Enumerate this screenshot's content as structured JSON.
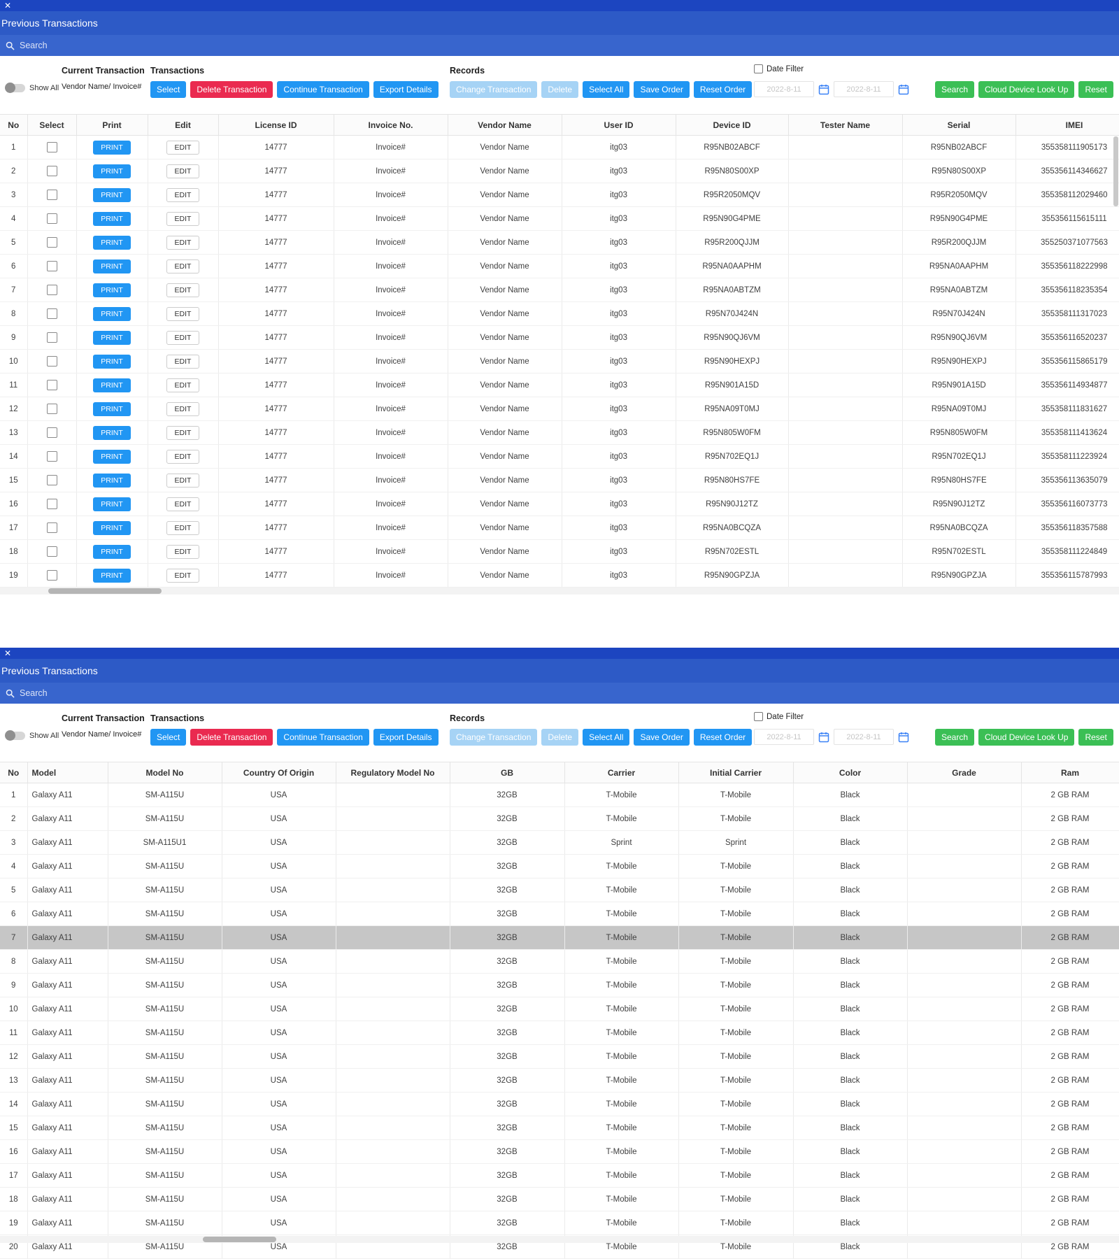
{
  "window": {
    "title": "Previous Transactions",
    "search_placeholder": "Search"
  },
  "toolbar": {
    "show_all_label": "Show All",
    "current_transaction_label": "Current Transaction",
    "current_transaction_value": "Vendor Name/ Invoice#",
    "transactions_label": "Transactions",
    "select_label": "Select",
    "delete_transaction_label": "Delete Transaction",
    "continue_transaction_label": "Continue Transaction",
    "export_details_label": "Export Details",
    "records_label": "Records",
    "change_transaction_label": "Change Transaction",
    "delete_label": "Delete",
    "select_all_label": "Select All",
    "save_order_label": "Save Order",
    "reset_order_label": "Reset Order",
    "date_filter_label": "Date Filter",
    "date_from_placeholder": "2022-8-11",
    "date_to_placeholder": "2022-8-11",
    "search_label": "Search",
    "cloud_lookup_label": "Cloud Device Look Up",
    "reset_label": "Reset"
  },
  "colors": {
    "accent_blue": "#2196f3",
    "danger_red": "#ea2a50",
    "disabled_blue": "#a6d3f5",
    "action_green": "#3bbf55",
    "title_blue": "#2d5ac6",
    "search_blue": "#3865cd",
    "strip_blue": "#1c45c0",
    "highlight_gray": "#c6c6c6"
  },
  "table1": {
    "print_label": "PRINT",
    "edit_label": "EDIT",
    "headers": [
      "No",
      "Select",
      "Print",
      "Edit",
      "License ID",
      "Invoice No.",
      "Vendor Name",
      "User ID",
      "Device ID",
      "Tester Name",
      "Serial",
      "IMEI"
    ],
    "rows": [
      {
        "no": 1,
        "license_id": "14777",
        "invoice_no": "Invoice#",
        "vendor_name": "Vendor Name",
        "user_id": "itg03",
        "device_id": "R95NB02ABCF",
        "tester_name": "",
        "serial": "R95NB02ABCF",
        "imei": "355358111905173"
      },
      {
        "no": 2,
        "license_id": "14777",
        "invoice_no": "Invoice#",
        "vendor_name": "Vendor Name",
        "user_id": "itg03",
        "device_id": "R95N80S00XP",
        "tester_name": "",
        "serial": "R95N80S00XP",
        "imei": "355356114346627"
      },
      {
        "no": 3,
        "license_id": "14777",
        "invoice_no": "Invoice#",
        "vendor_name": "Vendor Name",
        "user_id": "itg03",
        "device_id": "R95R2050MQV",
        "tester_name": "",
        "serial": "R95R2050MQV",
        "imei": "355358112029460"
      },
      {
        "no": 4,
        "license_id": "14777",
        "invoice_no": "Invoice#",
        "vendor_name": "Vendor Name",
        "user_id": "itg03",
        "device_id": "R95N90G4PME",
        "tester_name": "",
        "serial": "R95N90G4PME",
        "imei": "355356115615111"
      },
      {
        "no": 5,
        "license_id": "14777",
        "invoice_no": "Invoice#",
        "vendor_name": "Vendor Name",
        "user_id": "itg03",
        "device_id": "R95R200QJJM",
        "tester_name": "",
        "serial": "R95R200QJJM",
        "imei": "355250371077563"
      },
      {
        "no": 6,
        "license_id": "14777",
        "invoice_no": "Invoice#",
        "vendor_name": "Vendor Name",
        "user_id": "itg03",
        "device_id": "R95NA0AAPHM",
        "tester_name": "",
        "serial": "R95NA0AAPHM",
        "imei": "355356118222998"
      },
      {
        "no": 7,
        "license_id": "14777",
        "invoice_no": "Invoice#",
        "vendor_name": "Vendor Name",
        "user_id": "itg03",
        "device_id": "R95NA0ABTZM",
        "tester_name": "",
        "serial": "R95NA0ABTZM",
        "imei": "355356118235354"
      },
      {
        "no": 8,
        "license_id": "14777",
        "invoice_no": "Invoice#",
        "vendor_name": "Vendor Name",
        "user_id": "itg03",
        "device_id": "R95N70J424N",
        "tester_name": "",
        "serial": "R95N70J424N",
        "imei": "355358111317023"
      },
      {
        "no": 9,
        "license_id": "14777",
        "invoice_no": "Invoice#",
        "vendor_name": "Vendor Name",
        "user_id": "itg03",
        "device_id": "R95N90QJ6VM",
        "tester_name": "",
        "serial": "R95N90QJ6VM",
        "imei": "355356116520237"
      },
      {
        "no": 10,
        "license_id": "14777",
        "invoice_no": "Invoice#",
        "vendor_name": "Vendor Name",
        "user_id": "itg03",
        "device_id": "R95N90HEXPJ",
        "tester_name": "",
        "serial": "R95N90HEXPJ",
        "imei": "355356115865179"
      },
      {
        "no": 11,
        "license_id": "14777",
        "invoice_no": "Invoice#",
        "vendor_name": "Vendor Name",
        "user_id": "itg03",
        "device_id": "R95N901A15D",
        "tester_name": "",
        "serial": "R95N901A15D",
        "imei": "355356114934877"
      },
      {
        "no": 12,
        "license_id": "14777",
        "invoice_no": "Invoice#",
        "vendor_name": "Vendor Name",
        "user_id": "itg03",
        "device_id": "R95NA09T0MJ",
        "tester_name": "",
        "serial": "R95NA09T0MJ",
        "imei": "355358111831627"
      },
      {
        "no": 13,
        "license_id": "14777",
        "invoice_no": "Invoice#",
        "vendor_name": "Vendor Name",
        "user_id": "itg03",
        "device_id": "R95N805W0FM",
        "tester_name": "",
        "serial": "R95N805W0FM",
        "imei": "355358111413624"
      },
      {
        "no": 14,
        "license_id": "14777",
        "invoice_no": "Invoice#",
        "vendor_name": "Vendor Name",
        "user_id": "itg03",
        "device_id": "R95N702EQ1J",
        "tester_name": "",
        "serial": "R95N702EQ1J",
        "imei": "355358111223924"
      },
      {
        "no": 15,
        "license_id": "14777",
        "invoice_no": "Invoice#",
        "vendor_name": "Vendor Name",
        "user_id": "itg03",
        "device_id": "R95N80HS7FE",
        "tester_name": "",
        "serial": "R95N80HS7FE",
        "imei": "355356113635079"
      },
      {
        "no": 16,
        "license_id": "14777",
        "invoice_no": "Invoice#",
        "vendor_name": "Vendor Name",
        "user_id": "itg03",
        "device_id": "R95N90J12TZ",
        "tester_name": "",
        "serial": "R95N90J12TZ",
        "imei": "355356116073773"
      },
      {
        "no": 17,
        "license_id": "14777",
        "invoice_no": "Invoice#",
        "vendor_name": "Vendor Name",
        "user_id": "itg03",
        "device_id": "R95NA0BCQZA",
        "tester_name": "",
        "serial": "R95NA0BCQZA",
        "imei": "355356118357588"
      },
      {
        "no": 18,
        "license_id": "14777",
        "invoice_no": "Invoice#",
        "vendor_name": "Vendor Name",
        "user_id": "itg03",
        "device_id": "R95N702ESTL",
        "tester_name": "",
        "serial": "R95N702ESTL",
        "imei": "355358111224849"
      },
      {
        "no": 19,
        "license_id": "14777",
        "invoice_no": "Invoice#",
        "vendor_name": "Vendor Name",
        "user_id": "itg03",
        "device_id": "R95N90GPZJA",
        "tester_name": "",
        "serial": "R95N90GPZJA",
        "imei": "355356115787993"
      }
    ]
  },
  "table2": {
    "headers": [
      "No",
      "Model",
      "Model No",
      "Country Of Origin",
      "Regulatory Model No",
      "GB",
      "Carrier",
      "Initial Carrier",
      "Color",
      "Grade",
      "Ram"
    ],
    "highlighted_row": 7,
    "rows": [
      {
        "no": 1,
        "model": "Galaxy A11",
        "model_no": "SM-A115U",
        "country_of_origin": "USA",
        "regulatory_model_no": "",
        "gb": "32GB",
        "carrier": "T-Mobile",
        "initial_carrier": "T-Mobile",
        "color": "Black",
        "grade": "",
        "ram": "2 GB RAM",
        "highlighted": false
      },
      {
        "no": 2,
        "model": "Galaxy A11",
        "model_no": "SM-A115U",
        "country_of_origin": "USA",
        "regulatory_model_no": "",
        "gb": "32GB",
        "carrier": "T-Mobile",
        "initial_carrier": "T-Mobile",
        "color": "Black",
        "grade": "",
        "ram": "2 GB RAM",
        "highlighted": false
      },
      {
        "no": 3,
        "model": "Galaxy A11",
        "model_no": "SM-A115U1",
        "country_of_origin": "USA",
        "regulatory_model_no": "",
        "gb": "32GB",
        "carrier": "Sprint",
        "initial_carrier": "Sprint",
        "color": "Black",
        "grade": "",
        "ram": "2 GB RAM",
        "highlighted": false
      },
      {
        "no": 4,
        "model": "Galaxy A11",
        "model_no": "SM-A115U",
        "country_of_origin": "USA",
        "regulatory_model_no": "",
        "gb": "32GB",
        "carrier": "T-Mobile",
        "initial_carrier": "T-Mobile",
        "color": "Black",
        "grade": "",
        "ram": "2 GB RAM",
        "highlighted": false
      },
      {
        "no": 5,
        "model": "Galaxy A11",
        "model_no": "SM-A115U",
        "country_of_origin": "USA",
        "regulatory_model_no": "",
        "gb": "32GB",
        "carrier": "T-Mobile",
        "initial_carrier": "T-Mobile",
        "color": "Black",
        "grade": "",
        "ram": "2 GB RAM",
        "highlighted": false
      },
      {
        "no": 6,
        "model": "Galaxy A11",
        "model_no": "SM-A115U",
        "country_of_origin": "USA",
        "regulatory_model_no": "",
        "gb": "32GB",
        "carrier": "T-Mobile",
        "initial_carrier": "T-Mobile",
        "color": "Black",
        "grade": "",
        "ram": "2 GB RAM",
        "highlighted": false
      },
      {
        "no": 7,
        "model": "Galaxy A11",
        "model_no": "SM-A115U",
        "country_of_origin": "USA",
        "regulatory_model_no": "",
        "gb": "32GB",
        "carrier": "T-Mobile",
        "initial_carrier": "T-Mobile",
        "color": "Black",
        "grade": "",
        "ram": "2 GB RAM",
        "highlighted": true
      },
      {
        "no": 8,
        "model": "Galaxy A11",
        "model_no": "SM-A115U",
        "country_of_origin": "USA",
        "regulatory_model_no": "",
        "gb": "32GB",
        "carrier": "T-Mobile",
        "initial_carrier": "T-Mobile",
        "color": "Black",
        "grade": "",
        "ram": "2 GB RAM",
        "highlighted": false
      },
      {
        "no": 9,
        "model": "Galaxy A11",
        "model_no": "SM-A115U",
        "country_of_origin": "USA",
        "regulatory_model_no": "",
        "gb": "32GB",
        "carrier": "T-Mobile",
        "initial_carrier": "T-Mobile",
        "color": "Black",
        "grade": "",
        "ram": "2 GB RAM",
        "highlighted": false
      },
      {
        "no": 10,
        "model": "Galaxy A11",
        "model_no": "SM-A115U",
        "country_of_origin": "USA",
        "regulatory_model_no": "",
        "gb": "32GB",
        "carrier": "T-Mobile",
        "initial_carrier": "T-Mobile",
        "color": "Black",
        "grade": "",
        "ram": "2 GB RAM",
        "highlighted": false
      },
      {
        "no": 11,
        "model": "Galaxy A11",
        "model_no": "SM-A115U",
        "country_of_origin": "USA",
        "regulatory_model_no": "",
        "gb": "32GB",
        "carrier": "T-Mobile",
        "initial_carrier": "T-Mobile",
        "color": "Black",
        "grade": "",
        "ram": "2 GB RAM",
        "highlighted": false
      },
      {
        "no": 12,
        "model": "Galaxy A11",
        "model_no": "SM-A115U",
        "country_of_origin": "USA",
        "regulatory_model_no": "",
        "gb": "32GB",
        "carrier": "T-Mobile",
        "initial_carrier": "T-Mobile",
        "color": "Black",
        "grade": "",
        "ram": "2 GB RAM",
        "highlighted": false
      },
      {
        "no": 13,
        "model": "Galaxy A11",
        "model_no": "SM-A115U",
        "country_of_origin": "USA",
        "regulatory_model_no": "",
        "gb": "32GB",
        "carrier": "T-Mobile",
        "initial_carrier": "T-Mobile",
        "color": "Black",
        "grade": "",
        "ram": "2 GB RAM",
        "highlighted": false
      },
      {
        "no": 14,
        "model": "Galaxy A11",
        "model_no": "SM-A115U",
        "country_of_origin": "USA",
        "regulatory_model_no": "",
        "gb": "32GB",
        "carrier": "T-Mobile",
        "initial_carrier": "T-Mobile",
        "color": "Black",
        "grade": "",
        "ram": "2 GB RAM",
        "highlighted": false
      },
      {
        "no": 15,
        "model": "Galaxy A11",
        "model_no": "SM-A115U",
        "country_of_origin": "USA",
        "regulatory_model_no": "",
        "gb": "32GB",
        "carrier": "T-Mobile",
        "initial_carrier": "T-Mobile",
        "color": "Black",
        "grade": "",
        "ram": "2 GB RAM",
        "highlighted": false
      },
      {
        "no": 16,
        "model": "Galaxy A11",
        "model_no": "SM-A115U",
        "country_of_origin": "USA",
        "regulatory_model_no": "",
        "gb": "32GB",
        "carrier": "T-Mobile",
        "initial_carrier": "T-Mobile",
        "color": "Black",
        "grade": "",
        "ram": "2 GB RAM",
        "highlighted": false
      },
      {
        "no": 17,
        "model": "Galaxy A11",
        "model_no": "SM-A115U",
        "country_of_origin": "USA",
        "regulatory_model_no": "",
        "gb": "32GB",
        "carrier": "T-Mobile",
        "initial_carrier": "T-Mobile",
        "color": "Black",
        "grade": "",
        "ram": "2 GB RAM",
        "highlighted": false
      },
      {
        "no": 18,
        "model": "Galaxy A11",
        "model_no": "SM-A115U",
        "country_of_origin": "USA",
        "regulatory_model_no": "",
        "gb": "32GB",
        "carrier": "T-Mobile",
        "initial_carrier": "T-Mobile",
        "color": "Black",
        "grade": "",
        "ram": "2 GB RAM",
        "highlighted": false
      },
      {
        "no": 19,
        "model": "Galaxy A11",
        "model_no": "SM-A115U",
        "country_of_origin": "USA",
        "regulatory_model_no": "",
        "gb": "32GB",
        "carrier": "T-Mobile",
        "initial_carrier": "T-Mobile",
        "color": "Black",
        "grade": "",
        "ram": "2 GB RAM",
        "highlighted": false
      },
      {
        "no": 20,
        "model": "Galaxy A11",
        "model_no": "SM-A115U",
        "country_of_origin": "USA",
        "regulatory_model_no": "",
        "gb": "32GB",
        "carrier": "T-Mobile",
        "initial_carrier": "T-Mobile",
        "color": "Black",
        "grade": "",
        "ram": "2 GB RAM",
        "highlighted": false
      }
    ]
  }
}
